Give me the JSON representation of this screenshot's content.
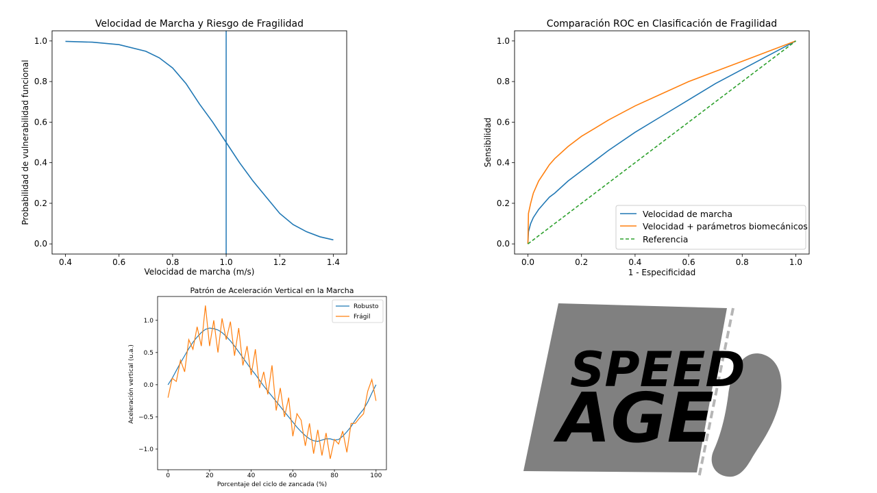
{
  "chart_data": [
    {
      "type": "line",
      "title": "Velocidad de Marcha y Riesgo de Fragilidad",
      "xlabel": "Velocidad de marcha (m/s)",
      "ylabel": "Probabilidad de vulnerabilidad funcional",
      "xlim": [
        0.35,
        1.45
      ],
      "ylim": [
        -0.05,
        1.05
      ],
      "xticks": [
        0.4,
        0.6,
        0.8,
        1.0,
        1.2,
        1.4
      ],
      "xtick_labels": [
        "0.4",
        "0.6",
        "0.8",
        "1.0",
        "1.2",
        "1.4"
      ],
      "yticks": [
        0.0,
        0.2,
        0.4,
        0.6,
        0.8,
        1.0
      ],
      "ytick_labels": [
        "0.0",
        "0.2",
        "0.4",
        "0.6",
        "0.8",
        "1.0"
      ],
      "grid": false,
      "color": "#1f77b4",
      "vline_x": 1.0,
      "x": [
        0.4,
        0.5,
        0.6,
        0.7,
        0.75,
        0.8,
        0.85,
        0.9,
        0.95,
        1.0,
        1.05,
        1.1,
        1.15,
        1.2,
        1.25,
        1.3,
        1.35,
        1.4
      ],
      "y": [
        0.998,
        0.994,
        0.982,
        0.949,
        0.917,
        0.867,
        0.79,
        0.69,
        0.6,
        0.5,
        0.4,
        0.31,
        0.23,
        0.15,
        0.095,
        0.06,
        0.035,
        0.02
      ]
    },
    {
      "type": "line",
      "title": "Comparación ROC en Clasificación de Fragilidad",
      "xlabel": "1 - Especificidad",
      "ylabel": "Sensibilidad",
      "xlim": [
        -0.05,
        1.05
      ],
      "ylim": [
        -0.05,
        1.05
      ],
      "xticks": [
        0.0,
        0.2,
        0.4,
        0.6,
        0.8,
        1.0
      ],
      "xtick_labels": [
        "0.0",
        "0.2",
        "0.4",
        "0.6",
        "0.8",
        "1.0"
      ],
      "yticks": [
        0.0,
        0.2,
        0.4,
        0.6,
        0.8,
        1.0
      ],
      "ytick_labels": [
        "0.0",
        "0.2",
        "0.4",
        "0.6",
        "0.8",
        "1.0"
      ],
      "grid": false,
      "legend_position": "lower-right",
      "x": [
        0,
        0.002,
        0.01,
        0.02,
        0.04,
        0.06,
        0.08,
        0.1,
        0.15,
        0.2,
        0.25,
        0.3,
        0.4,
        0.5,
        0.6,
        0.7,
        0.8,
        0.9,
        1.0
      ],
      "series": [
        {
          "name": "Velocidad de marcha",
          "color": "#1f77b4",
          "dash": "solid",
          "values": [
            0,
            0.06,
            0.1,
            0.13,
            0.17,
            0.2,
            0.23,
            0.25,
            0.31,
            0.36,
            0.41,
            0.46,
            0.55,
            0.63,
            0.71,
            0.79,
            0.86,
            0.93,
            1.0
          ]
        },
        {
          "name": "Velocidad + parámetros biomecánicos",
          "color": "#ff7f0e",
          "dash": "solid",
          "values": [
            0,
            0.15,
            0.2,
            0.25,
            0.31,
            0.35,
            0.39,
            0.42,
            0.48,
            0.53,
            0.57,
            0.61,
            0.68,
            0.74,
            0.8,
            0.85,
            0.9,
            0.95,
            1.0
          ]
        },
        {
          "name": "Referencia",
          "color": "#2ca02c",
          "dash": "dashed",
          "values": [
            0,
            0.002,
            0.01,
            0.02,
            0.04,
            0.06,
            0.08,
            0.1,
            0.15,
            0.2,
            0.25,
            0.3,
            0.4,
            0.5,
            0.6,
            0.7,
            0.8,
            0.9,
            1.0
          ]
        }
      ]
    },
    {
      "type": "line",
      "title": "Patrón de Aceleración Vertical en la Marcha",
      "xlabel": "Porcentaje del ciclo de zancada (%)",
      "ylabel": "Aceleración vertical (u.a.)",
      "xlim": [
        -5,
        105
      ],
      "ylim": [
        -1.32,
        1.37
      ],
      "xticks": [
        0,
        20,
        40,
        60,
        80,
        100
      ],
      "xtick_labels": [
        "0",
        "20",
        "40",
        "60",
        "80",
        "100"
      ],
      "yticks": [
        -1.0,
        -0.5,
        0.0,
        0.5,
        1.0
      ],
      "ytick_labels": [
        "−1.0",
        "−0.5",
        "0.0",
        "0.5",
        "1.0"
      ],
      "grid": false,
      "legend_position": "upper-right",
      "x": [
        0,
        2,
        4,
        6,
        8,
        10,
        12,
        14,
        16,
        18,
        20,
        22,
        24,
        26,
        28,
        30,
        32,
        34,
        36,
        38,
        40,
        42,
        44,
        46,
        48,
        50,
        52,
        54,
        56,
        58,
        60,
        62,
        64,
        66,
        68,
        70,
        72,
        74,
        76,
        78,
        80,
        82,
        84,
        86,
        88,
        90,
        92,
        94,
        96,
        98,
        100
      ],
      "series": [
        {
          "name": "Robusto",
          "color": "#1f77b4",
          "values": [
            0.0,
            0.1,
            0.22,
            0.34,
            0.45,
            0.56,
            0.66,
            0.74,
            0.81,
            0.86,
            0.88,
            0.87,
            0.85,
            0.81,
            0.75,
            0.68,
            0.6,
            0.51,
            0.42,
            0.33,
            0.24,
            0.16,
            0.07,
            -0.02,
            -0.1,
            -0.18,
            -0.26,
            -0.34,
            -0.42,
            -0.5,
            -0.58,
            -0.66,
            -0.73,
            -0.79,
            -0.84,
            -0.87,
            -0.88,
            -0.86,
            -0.84,
            -0.84,
            -0.86,
            -0.85,
            -0.8,
            -0.73,
            -0.65,
            -0.55,
            -0.46,
            -0.38,
            -0.27,
            -0.13,
            0.0
          ]
        },
        {
          "name": "Frágil",
          "color": "#ff7f0e",
          "values": [
            -0.2,
            0.1,
            0.05,
            0.38,
            0.2,
            0.7,
            0.55,
            0.9,
            0.6,
            1.23,
            0.6,
            1.0,
            0.5,
            1.03,
            0.7,
            0.98,
            0.45,
            0.88,
            0.3,
            0.6,
            0.15,
            0.55,
            -0.05,
            0.2,
            -0.15,
            0.3,
            -0.4,
            -0.05,
            -0.5,
            -0.2,
            -0.8,
            -0.45,
            -0.55,
            -0.95,
            -0.6,
            -1.07,
            -0.7,
            -1.1,
            -0.75,
            -1.15,
            -0.85,
            -0.92,
            -0.72,
            -1.05,
            -0.6,
            -0.6,
            -0.52,
            -0.45,
            -0.1,
            0.08,
            -0.25
          ]
        }
      ]
    }
  ],
  "logo": {
    "line1": "SPEED",
    "line2": "AGE",
    "panel_color": "#808080",
    "text_color": "#cfcfcf",
    "icon": "footprint-icon"
  }
}
